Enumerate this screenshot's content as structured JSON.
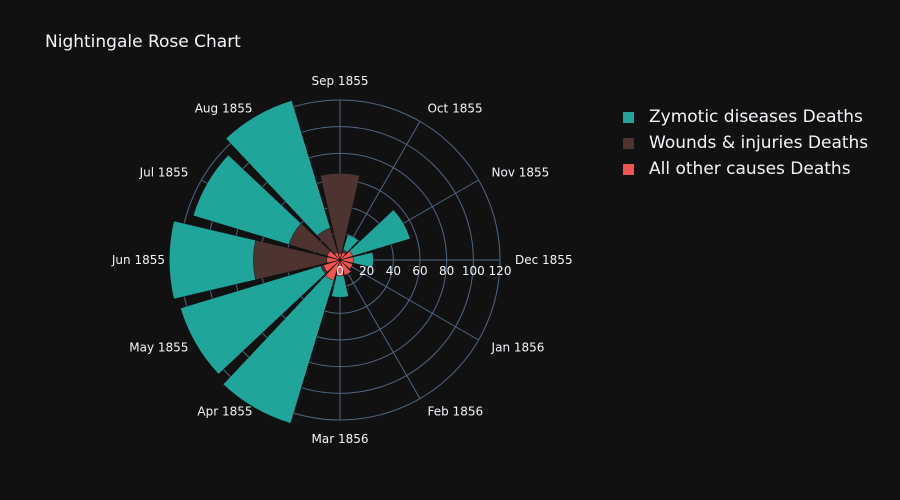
{
  "chart_data": {
    "type": "polar-bar",
    "title": "Nightingale Rose Chart",
    "categories": [
      "Dec 1855",
      "Nov 1855",
      "Oct 1855",
      "Sep 1855",
      "Aug 1855",
      "Jul 1855",
      "Jun 1855",
      "May 1855",
      "Apr 1855",
      "Mar 1856",
      "Feb 1856",
      "Jan 1856"
    ],
    "radial_axis": {
      "range": [
        0,
        120
      ],
      "ticks": [
        "0",
        "20",
        "40",
        "60",
        "80",
        "100",
        "120"
      ]
    },
    "series": [
      {
        "name": "Zymotic diseases Deaths",
        "color": "#20a59b",
        "values": [
          25,
          55,
          20,
          60,
          125,
          115,
          128,
          125,
          128,
          28,
          6,
          6
        ]
      },
      {
        "name": "Wounds & injuries Deaths",
        "color": "#4e3431",
        "values": [
          2,
          4,
          8,
          65,
          25,
          40,
          65,
          15,
          8,
          2,
          1,
          1
        ]
      },
      {
        "name": "All other causes Deaths",
        "color": "#ef5450",
        "values": [
          10,
          10,
          6,
          5,
          6,
          10,
          10,
          13,
          16,
          12,
          12,
          10
        ]
      }
    ],
    "legend_position": "top-right"
  }
}
